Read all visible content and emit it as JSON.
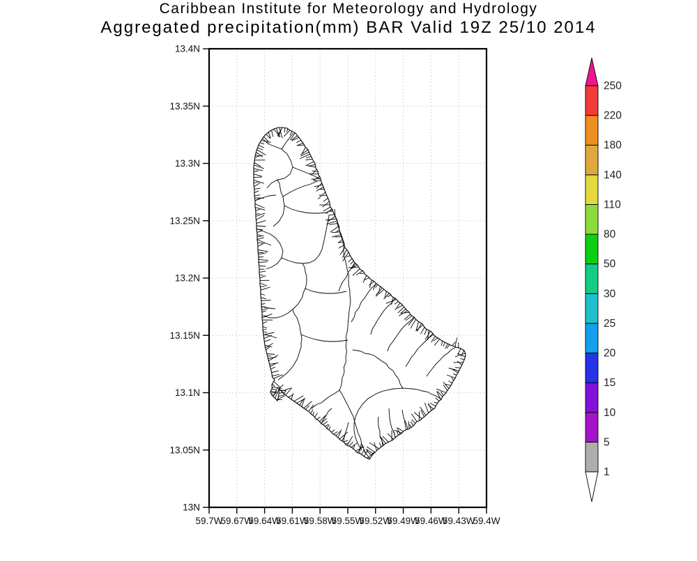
{
  "title": {
    "line1": "Caribbean Institute for Meteorology and Hydrology",
    "line2": "Aggregated precipitation(mm) BAR Valid 19Z 25/10 2014"
  },
  "axes": {
    "lat_labels": [
      "13.4N",
      "13.35N",
      "13.3N",
      "13.25N",
      "13.2N",
      "13.15N",
      "13.1N",
      "13.05N",
      "13N"
    ],
    "lon_labels": [
      "59.7W",
      "59.67W",
      "59.64W",
      "59.61W",
      "59.58W",
      "59.55W",
      "59.52W",
      "59.49W",
      "59.46W",
      "59.43W",
      "59.4W"
    ]
  },
  "colorbar": {
    "tick_labels_top_to_bottom": [
      "250",
      "220",
      "180",
      "140",
      "110",
      "80",
      "50",
      "30",
      "25",
      "20",
      "15",
      "10",
      "5",
      "1"
    ],
    "segments_bottom_to_top": [
      {
        "from": "1",
        "to": "5",
        "color": "#aeaeae"
      },
      {
        "from": "5",
        "to": "10",
        "color": "#a512cb"
      },
      {
        "from": "10",
        "to": "15",
        "color": "#8312d8"
      },
      {
        "from": "15",
        "to": "20",
        "color": "#2633e8"
      },
      {
        "from": "20",
        "to": "25",
        "color": "#129fec"
      },
      {
        "from": "25",
        "to": "30",
        "color": "#20bfcc"
      },
      {
        "from": "30",
        "to": "50",
        "color": "#12cd86"
      },
      {
        "from": "50",
        "to": "80",
        "color": "#0fce13"
      },
      {
        "from": "80",
        "to": "110",
        "color": "#8cdc3c"
      },
      {
        "from": "110",
        "to": "140",
        "color": "#e3d83f"
      },
      {
        "from": "140",
        "to": "180",
        "color": "#dfa93f"
      },
      {
        "from": "180",
        "to": "220",
        "color": "#ef8f20"
      },
      {
        "from": "220",
        "to": "250",
        "color": "#f23b3b"
      }
    ],
    "over_color": "#f0148c",
    "under_color": "#ffffff",
    "units": "mm"
  },
  "chart_data": {
    "type": "heatmap",
    "title": "Aggregated precipitation(mm) BAR Valid 19Z 25/10 2014",
    "region": "Barbados watershed map",
    "xlabel_ticks": [
      "59.7W",
      "59.67W",
      "59.64W",
      "59.61W",
      "59.58W",
      "59.55W",
      "59.52W",
      "59.49W",
      "59.46W",
      "59.43W",
      "59.4W"
    ],
    "ylabel_ticks": [
      "13.4N",
      "13.35N",
      "13.3N",
      "13.25N",
      "13.2N",
      "13.15N",
      "13.1N",
      "13.05N",
      "13N"
    ],
    "xlim_deg_west": [
      59.7,
      59.4
    ],
    "ylim_deg_north": [
      13.0,
      13.4
    ],
    "grid": true,
    "legend_position": "right",
    "color_scale_levels": [
      1,
      5,
      10,
      15,
      20,
      25,
      30,
      50,
      80,
      110,
      140,
      180,
      220,
      250
    ],
    "displayed_precipitation": "no shaded values on map (all below lowest contour)"
  }
}
